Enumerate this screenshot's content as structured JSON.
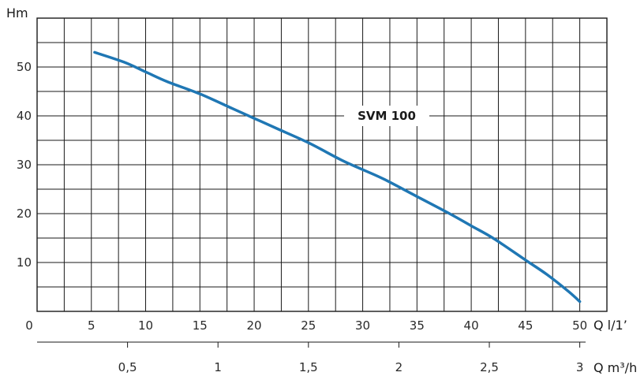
{
  "chart_data": {
    "type": "line",
    "ylabel": "Hm",
    "xlabel": "Q l/1’",
    "x2label": "Q m³/h",
    "xlim": [
      0,
      52.5
    ],
    "ylim": [
      0,
      60
    ],
    "grid": true,
    "y_ticks": [
      {
        "value": 10,
        "label": "10"
      },
      {
        "value": 20,
        "label": "20"
      },
      {
        "value": 30,
        "label": "30"
      },
      {
        "value": 40,
        "label": "40"
      },
      {
        "value": 50,
        "label": "50"
      }
    ],
    "x_ticks": [
      {
        "value": 0,
        "label": "0"
      },
      {
        "value": 5,
        "label": "5"
      },
      {
        "value": 10,
        "label": "10"
      },
      {
        "value": 15,
        "label": "15"
      },
      {
        "value": 20,
        "label": "20"
      },
      {
        "value": 25,
        "label": "25"
      },
      {
        "value": 30,
        "label": "30"
      },
      {
        "value": 35,
        "label": "35"
      },
      {
        "value": 40,
        "label": "40"
      },
      {
        "value": 45,
        "label": "45"
      },
      {
        "value": 50,
        "label": "50"
      }
    ],
    "x2_ticks": [
      {
        "value": 0.5,
        "label": "0,5"
      },
      {
        "value": 1,
        "label": "1"
      },
      {
        "value": 1.5,
        "label": "1,5"
      },
      {
        "value": 2,
        "label": "2"
      },
      {
        "value": 2.5,
        "label": "2,5"
      },
      {
        "value": 3,
        "label": "3"
      }
    ],
    "series": [
      {
        "name": "SVM 100",
        "color": "#1f77b4",
        "x": [
          5.3,
          8,
          10,
          12,
          15,
          18,
          20,
          22,
          25,
          28,
          30,
          32,
          35,
          38,
          40,
          42,
          45,
          47,
          49,
          50
        ],
        "y": [
          53,
          51,
          49,
          47,
          44.5,
          41.5,
          39.5,
          37.5,
          34.5,
          31,
          29,
          27,
          23.5,
          20,
          17.5,
          15,
          10.5,
          7.5,
          4,
          2
        ]
      }
    ]
  }
}
